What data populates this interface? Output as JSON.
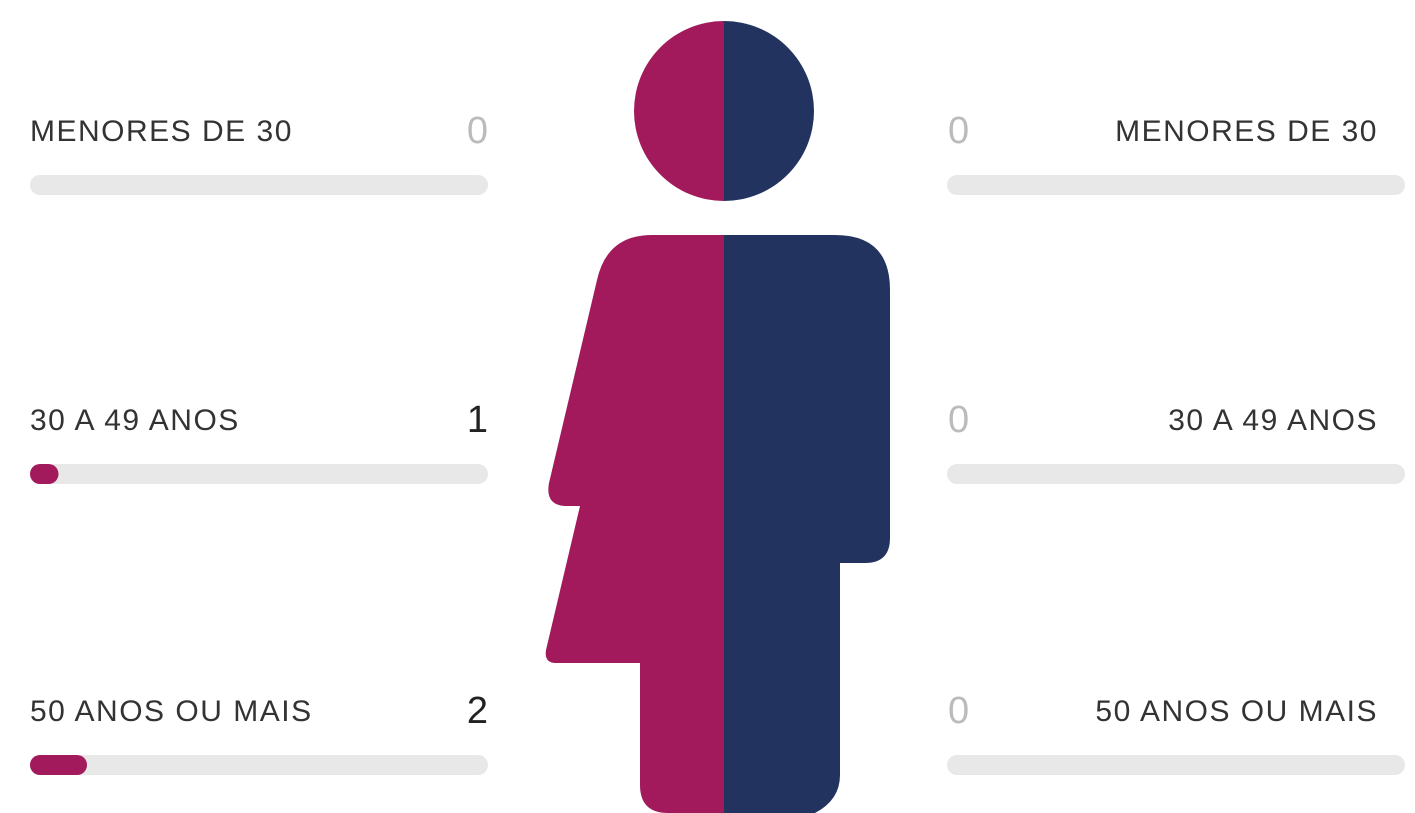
{
  "female": {
    "groups": [
      {
        "label": "MENORES DE 30",
        "count": 0
      },
      {
        "label": "30 A 49 ANOS",
        "count": 1
      },
      {
        "label": "50 ANOS OU MAIS",
        "count": 2
      }
    ]
  },
  "male": {
    "groups": [
      {
        "label": "MENORES DE 30",
        "count": 0
      },
      {
        "label": "30 A 49 ANOS",
        "count": 0
      },
      {
        "label": "50 ANOS OU MAIS",
        "count": 0
      }
    ]
  }
}
